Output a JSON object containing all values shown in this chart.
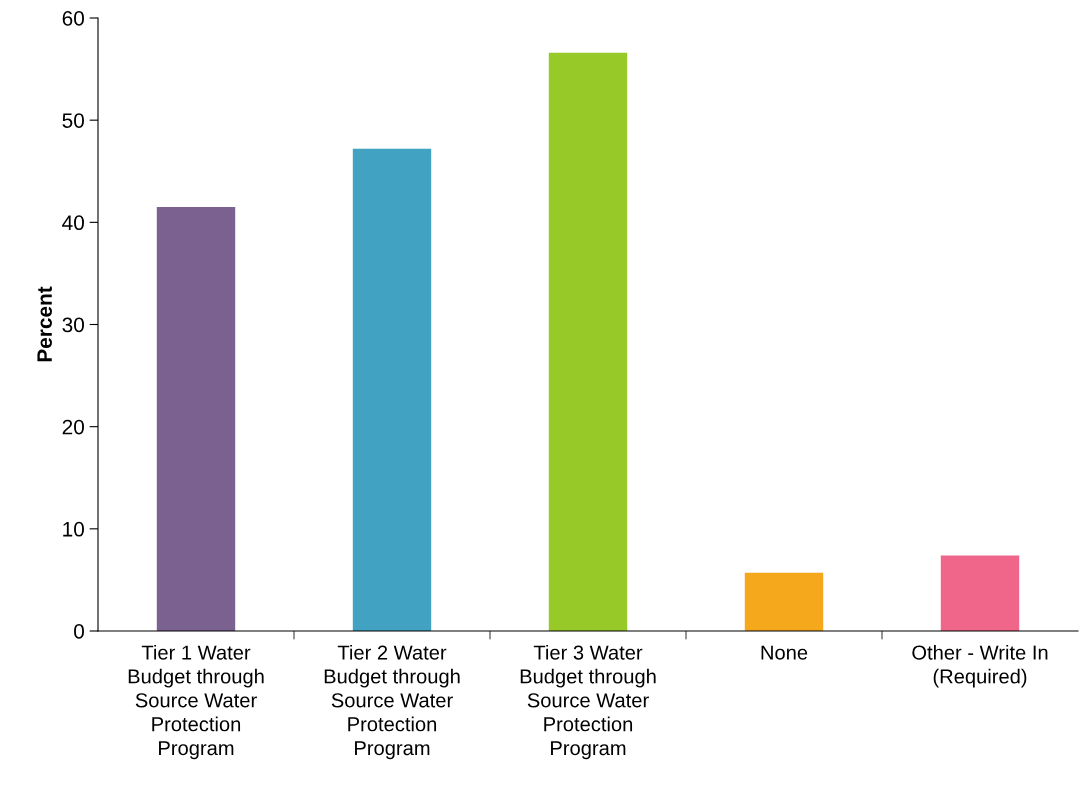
{
  "chart_data": {
    "type": "bar",
    "ylabel": "Percent",
    "categories": [
      "Tier 1 Water\nBudget through\nSource Water\nProtection\nProgram",
      "Tier 2 Water\nBudget through\nSource Water\nProtection\nProgram",
      "Tier 3 Water\nBudget through\nSource Water\nProtection\nProgram",
      "None",
      "Other - Write In\n(Required)"
    ],
    "values": [
      41.5,
      47.2,
      56.6,
      5.7,
      7.4
    ],
    "colors": [
      "#7b6190",
      "#41a2c1",
      "#97c928",
      "#f5a81c",
      "#f0668a"
    ],
    "ylim": [
      0,
      60
    ],
    "yticks": [
      0,
      10,
      20,
      30,
      40,
      50,
      60
    ],
    "grid": false
  }
}
